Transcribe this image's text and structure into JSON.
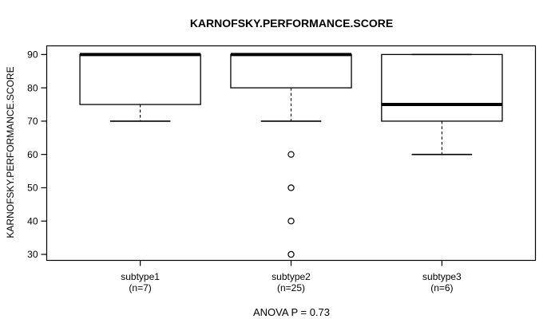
{
  "colors": {
    "line": "#000000",
    "background": "#ffffff"
  },
  "chart_data": {
    "type": "boxplot",
    "title": "KARNOFSKY.PERFORMANCE.SCORE",
    "ylabel": "KARNOFSKY.PERFORMANCE.SCORE",
    "annotation": "ANOVA P = 0.73",
    "grid": false,
    "ylim": [
      28.2,
      92.6
    ],
    "yticks": [
      30,
      40,
      50,
      60,
      70,
      80,
      90
    ],
    "groups": [
      {
        "label": "subtype1",
        "sublabel": "(n=7)",
        "n": 7,
        "whisker_low": 70,
        "q1": 75,
        "median": 90,
        "q3": 90,
        "whisker_high": 90,
        "outliers": []
      },
      {
        "label": "subtype2",
        "sublabel": "(n=25)",
        "n": 25,
        "whisker_low": 70,
        "q1": 80,
        "median": 90,
        "q3": 90,
        "whisker_high": 90,
        "outliers": [
          60,
          50,
          40,
          30
        ]
      },
      {
        "label": "subtype3",
        "sublabel": "(n=6)",
        "n": 6,
        "whisker_low": 60,
        "q1": 70,
        "median": 75,
        "q3": 90,
        "whisker_high": 90,
        "outliers": []
      }
    ]
  }
}
